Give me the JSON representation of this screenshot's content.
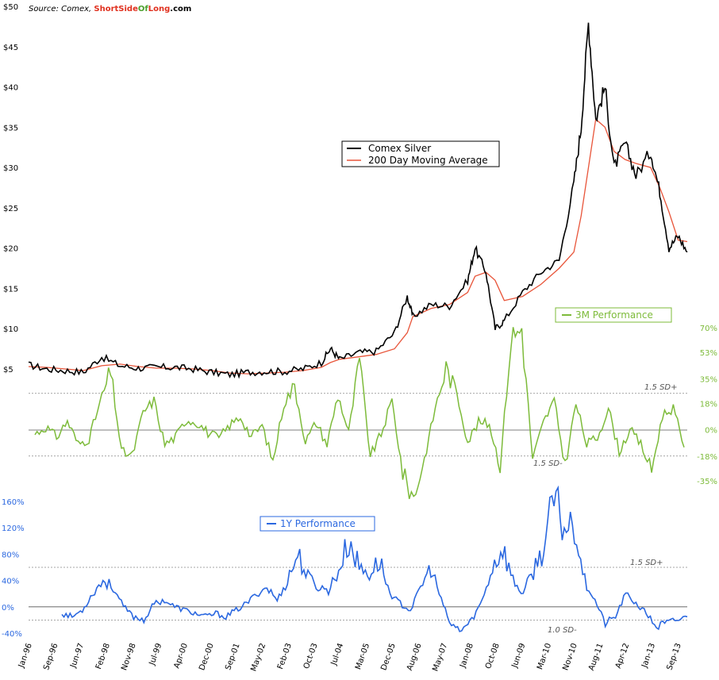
{
  "source": {
    "prefix": "Source: Comex, ",
    "brand_short": "Short",
    "brand_side": "Side",
    "brand_of": "Of",
    "brand_long": "Long",
    "brand_suffix": ".com"
  },
  "colors": {
    "silver": "#000000",
    "ma": "#e8553a",
    "perf3m": "#7dbb3a",
    "perf1y": "#2b68e0",
    "brand_red": "#e0301e",
    "brand_green": "#4aa02c"
  },
  "chart_data": [
    {
      "type": "line",
      "title": "",
      "xlabel": "",
      "ylabel": "",
      "ylim": [
        0,
        50
      ],
      "y_ticks": [
        "$5",
        "$10",
        "$15",
        "$20",
        "$25",
        "$30",
        "$35",
        "$40",
        "$45",
        "$50"
      ],
      "legend": [
        "Comex Silver",
        "200 Day Moving Average"
      ],
      "legend_position": "center",
      "x": [
        1996.0,
        1996.5,
        1997.0,
        1997.5,
        1998.0,
        1998.5,
        1999.0,
        1999.5,
        2000.0,
        2000.5,
        2001.0,
        2001.5,
        2002.0,
        2002.5,
        2003.0,
        2003.5,
        2004.0,
        2004.25,
        2004.5,
        2005.0,
        2005.5,
        2006.0,
        2006.35,
        2006.5,
        2007.0,
        2007.5,
        2008.0,
        2008.2,
        2008.5,
        2008.75,
        2009.0,
        2009.5,
        2010.0,
        2010.5,
        2010.9,
        2011.1,
        2011.3,
        2011.5,
        2011.75,
        2012.0,
        2012.3,
        2012.6,
        2013.0,
        2013.25,
        2013.5,
        2013.75,
        2014.0
      ],
      "series": [
        {
          "name": "Comex Silver",
          "values": [
            5.5,
            5.0,
            4.8,
            4.6,
            6.5,
            5.4,
            5.1,
            5.2,
            5.2,
            5.0,
            4.6,
            4.3,
            4.6,
            4.7,
            4.7,
            5.0,
            5.8,
            7.5,
            6.2,
            7.0,
            7.2,
            9.5,
            14.0,
            11.5,
            13.0,
            12.8,
            16.0,
            20.0,
            17.0,
            10.0,
            11.0,
            14.5,
            17.0,
            18.5,
            28.0,
            35.0,
            48.0,
            36.0,
            40.0,
            30.0,
            33.0,
            29.0,
            32.0,
            27.0,
            20.0,
            21.5,
            19.5
          ]
        },
        {
          "name": "200 Day Moving Average",
          "values": [
            5.3,
            5.2,
            5.0,
            4.8,
            5.4,
            5.6,
            5.3,
            5.1,
            5.1,
            5.0,
            4.8,
            4.5,
            4.4,
            4.5,
            4.6,
            4.8,
            5.2,
            5.8,
            6.2,
            6.5,
            6.8,
            7.5,
            9.5,
            11.5,
            12.5,
            13.0,
            14.5,
            16.5,
            17.0,
            16.0,
            13.5,
            14.0,
            15.5,
            17.5,
            19.5,
            24.0,
            30.0,
            36.0,
            35.0,
            32.0,
            31.0,
            30.5,
            30.0,
            27.5,
            24.5,
            21.0,
            20.8
          ]
        }
      ]
    },
    {
      "type": "line",
      "title": "",
      "ylim": [
        -35,
        70
      ],
      "y_ticks": [
        "70%",
        "53%",
        "35%",
        "18%",
        "0%",
        "-18%",
        "-35%"
      ],
      "legend": [
        "3M Performance"
      ],
      "legend_position": "top-right",
      "reference_lines": [
        {
          "label": "1.5 SD+",
          "value": 25
        },
        {
          "label": "1.5 SD-",
          "value": -18
        }
      ],
      "series": [
        {
          "name": "3M Performance",
          "values": [
            -3,
            2,
            -5,
            6,
            -10,
            -6,
            18,
            40,
            -15,
            -18,
            12,
            20,
            -10,
            -5,
            7,
            5,
            -2,
            -6,
            3,
            9,
            -5,
            3,
            -22,
            18,
            30,
            -8,
            5,
            -10,
            24,
            -2,
            48,
            -18,
            -3,
            20,
            -30,
            -47,
            -20,
            15,
            42,
            25,
            -8,
            5,
            4,
            -25,
            62,
            70,
            -20,
            5,
            20,
            -25,
            18,
            -10,
            -5,
            15,
            -15,
            0,
            -10,
            -28,
            10,
            15,
            -12
          ]
        }
      ]
    },
    {
      "type": "line",
      "title": "",
      "ylim": [
        -40,
        160
      ],
      "y_ticks": [
        "160%",
        "120%",
        "80%",
        "40%",
        "0%",
        "-40%"
      ],
      "legend": [
        "1Y Performance"
      ],
      "legend_position": "top-left",
      "reference_lines": [
        {
          "label": "1.5 SD+",
          "value": 60
        },
        {
          "label": "1.0 SD-",
          "value": -20
        }
      ],
      "series": [
        {
          "name": "1Y Performance",
          "values": [
            -10,
            -15,
            -5,
            20,
            40,
            30,
            0,
            -15,
            -20,
            5,
            10,
            0,
            -5,
            -10,
            -15,
            -10,
            -15,
            -5,
            5,
            20,
            30,
            10,
            40,
            80,
            45,
            30,
            25,
            55,
            100,
            60,
            50,
            70,
            20,
            5,
            -5,
            30,
            60,
            10,
            -30,
            -35,
            -20,
            10,
            60,
            90,
            40,
            20,
            55,
            90,
            160,
            120,
            130,
            40,
            10,
            -25,
            -15,
            20,
            5,
            -10,
            -30,
            -25,
            -20,
            -15
          ]
        }
      ]
    }
  ],
  "x_ticks": [
    "Jan-96",
    "Sep-96",
    "Jun-97",
    "Feb-98",
    "Nov-98",
    "Jul-99",
    "Apr-00",
    "Dec-00",
    "Sep-01",
    "May-02",
    "Feb-03",
    "Oct-03",
    "Jul-04",
    "Mar-05",
    "Dec-05",
    "Aug-06",
    "May-07",
    "Jan-08",
    "Oct-08",
    "Jun-09",
    "Mar-10",
    "Nov-10",
    "Aug-11",
    "Apr-12",
    "Jan-13",
    "Sep-13"
  ]
}
